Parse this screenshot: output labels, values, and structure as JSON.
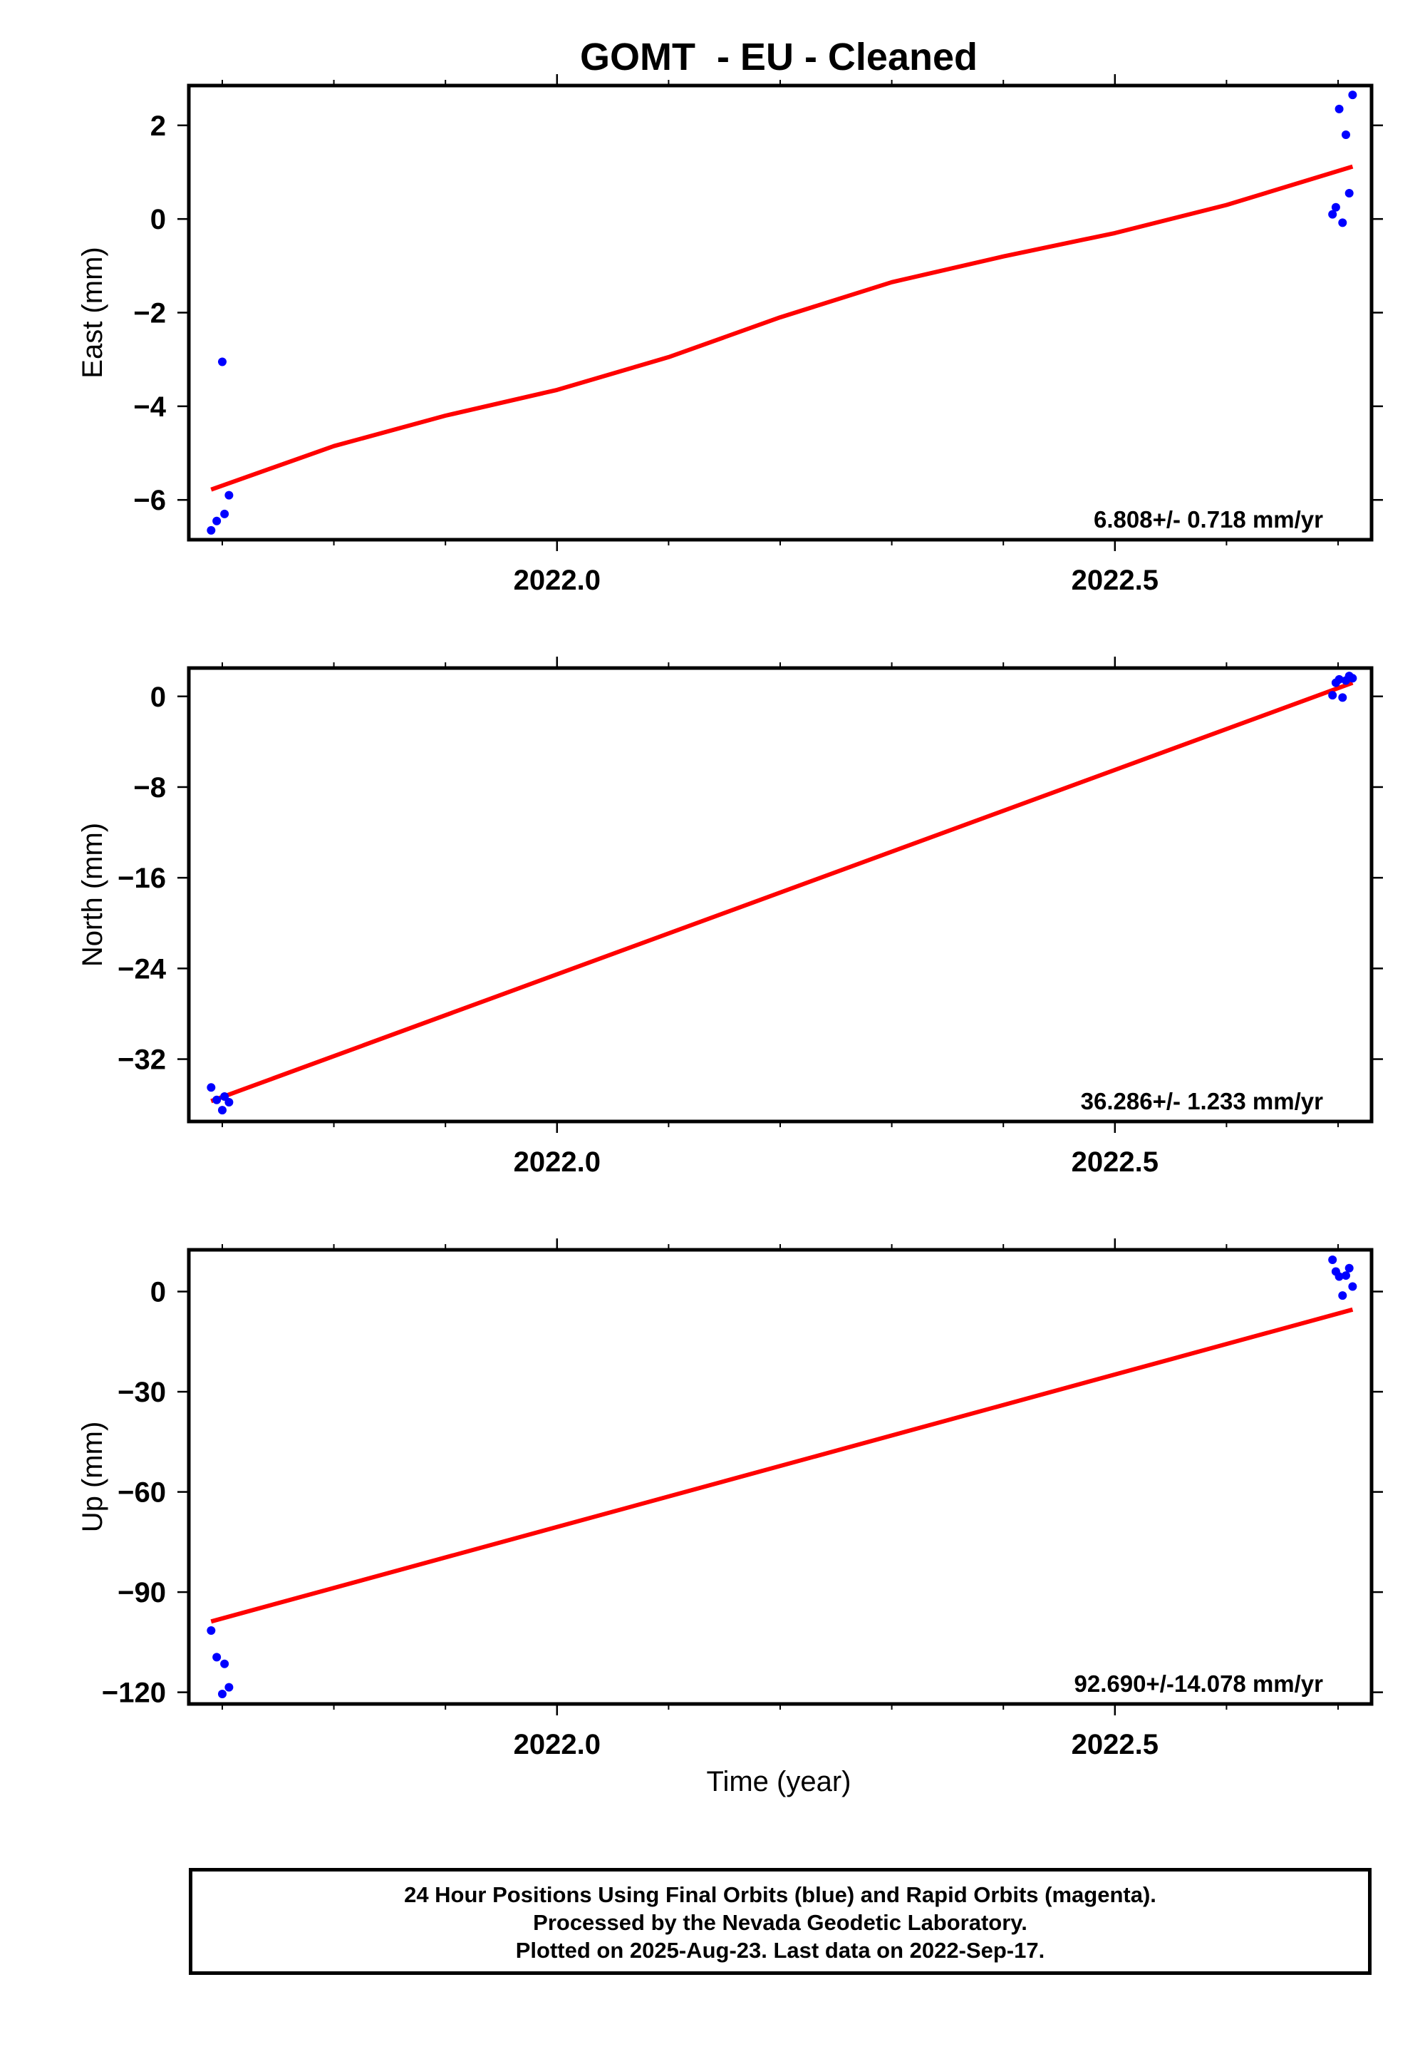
{
  "title": "GOMT  - EU - Cleaned",
  "xlabel": "Time (year)",
  "footer": {
    "line1": "24 Hour Positions Using Final Orbits (blue) and Rapid Orbits (magenta).",
    "line2": "Processed by the Nevada Geodetic Laboratory.",
    "line3": "Plotted on 2025-Aug-23. Last data on 2022-Sep-17."
  },
  "colors": {
    "points": "#0000ff",
    "fit": "#ff0000",
    "frame": "#000000"
  },
  "chart_data": [
    {
      "type": "scatter",
      "ylabel": "East (mm)",
      "rate_label": "6.808+/- 0.718 mm/yr",
      "xlim": [
        2021.67,
        2022.73
      ],
      "ylim": [
        -6.85,
        2.85
      ],
      "xticks": [
        2022.0,
        2022.5
      ],
      "yticks": [
        -6,
        -4,
        -2,
        0,
        2
      ],
      "points": [
        {
          "x": 2021.69,
          "y": -6.65
        },
        {
          "x": 2021.695,
          "y": -6.45
        },
        {
          "x": 2021.7,
          "y": -3.05
        },
        {
          "x": 2021.702,
          "y": -6.3
        },
        {
          "x": 2021.706,
          "y": -5.9
        },
        {
          "x": 2022.695,
          "y": 0.1
        },
        {
          "x": 2022.698,
          "y": 0.25
        },
        {
          "x": 2022.701,
          "y": 2.35
        },
        {
          "x": 2022.704,
          "y": -0.08
        },
        {
          "x": 2022.707,
          "y": 1.8
        },
        {
          "x": 2022.71,
          "y": 0.55
        },
        {
          "x": 2022.713,
          "y": 2.65
        }
      ],
      "fit": [
        {
          "x": 2021.69,
          "y": -5.78
        },
        {
          "x": 2021.8,
          "y": -4.85
        },
        {
          "x": 2021.9,
          "y": -4.2
        },
        {
          "x": 2022.0,
          "y": -3.65
        },
        {
          "x": 2022.1,
          "y": -2.95
        },
        {
          "x": 2022.2,
          "y": -2.1
        },
        {
          "x": 2022.3,
          "y": -1.35
        },
        {
          "x": 2022.4,
          "y": -0.8
        },
        {
          "x": 2022.5,
          "y": -0.3
        },
        {
          "x": 2022.6,
          "y": 0.3
        },
        {
          "x": 2022.713,
          "y": 1.12
        }
      ]
    },
    {
      "type": "scatter",
      "ylabel": "North (mm)",
      "rate_label": "36.286+/- 1.233 mm/yr",
      "xlim": [
        2021.67,
        2022.73
      ],
      "ylim": [
        -37.5,
        2.5
      ],
      "xticks": [
        2022.0,
        2022.5
      ],
      "yticks": [
        -32,
        -24,
        -16,
        -8,
        0
      ],
      "points": [
        {
          "x": 2021.69,
          "y": -34.5
        },
        {
          "x": 2021.695,
          "y": -35.6
        },
        {
          "x": 2021.7,
          "y": -36.5
        },
        {
          "x": 2021.702,
          "y": -35.3
        },
        {
          "x": 2021.706,
          "y": -35.8
        },
        {
          "x": 2022.695,
          "y": 0.1
        },
        {
          "x": 2022.698,
          "y": 1.2
        },
        {
          "x": 2022.701,
          "y": 1.5
        },
        {
          "x": 2022.704,
          "y": -0.1
        },
        {
          "x": 2022.707,
          "y": 1.4
        },
        {
          "x": 2022.71,
          "y": 1.8
        },
        {
          "x": 2022.713,
          "y": 1.6
        }
      ],
      "fit": [
        {
          "x": 2021.69,
          "y": -35.7
        },
        {
          "x": 2022.713,
          "y": 1.2
        }
      ]
    },
    {
      "type": "scatter",
      "ylabel": "Up (mm)",
      "rate_label": "92.690+/-14.078 mm/yr",
      "xlim": [
        2021.67,
        2022.73
      ],
      "ylim": [
        -123.5,
        12.5
      ],
      "xticks": [
        2022.0,
        2022.5
      ],
      "yticks": [
        -120,
        -90,
        -60,
        -30,
        0
      ],
      "points": [
        {
          "x": 2021.69,
          "y": -101.5
        },
        {
          "x": 2021.695,
          "y": -109.5
        },
        {
          "x": 2021.7,
          "y": -120.5
        },
        {
          "x": 2021.702,
          "y": -111.5
        },
        {
          "x": 2021.706,
          "y": -118.5
        },
        {
          "x": 2022.695,
          "y": 9.5
        },
        {
          "x": 2022.698,
          "y": 6.0
        },
        {
          "x": 2022.701,
          "y": 4.5
        },
        {
          "x": 2022.704,
          "y": -1.2
        },
        {
          "x": 2022.707,
          "y": 4.8
        },
        {
          "x": 2022.71,
          "y": 7.0
        },
        {
          "x": 2022.713,
          "y": 1.5
        }
      ],
      "fit": [
        {
          "x": 2021.69,
          "y": -98.8
        },
        {
          "x": 2022.713,
          "y": -5.4
        }
      ]
    }
  ]
}
